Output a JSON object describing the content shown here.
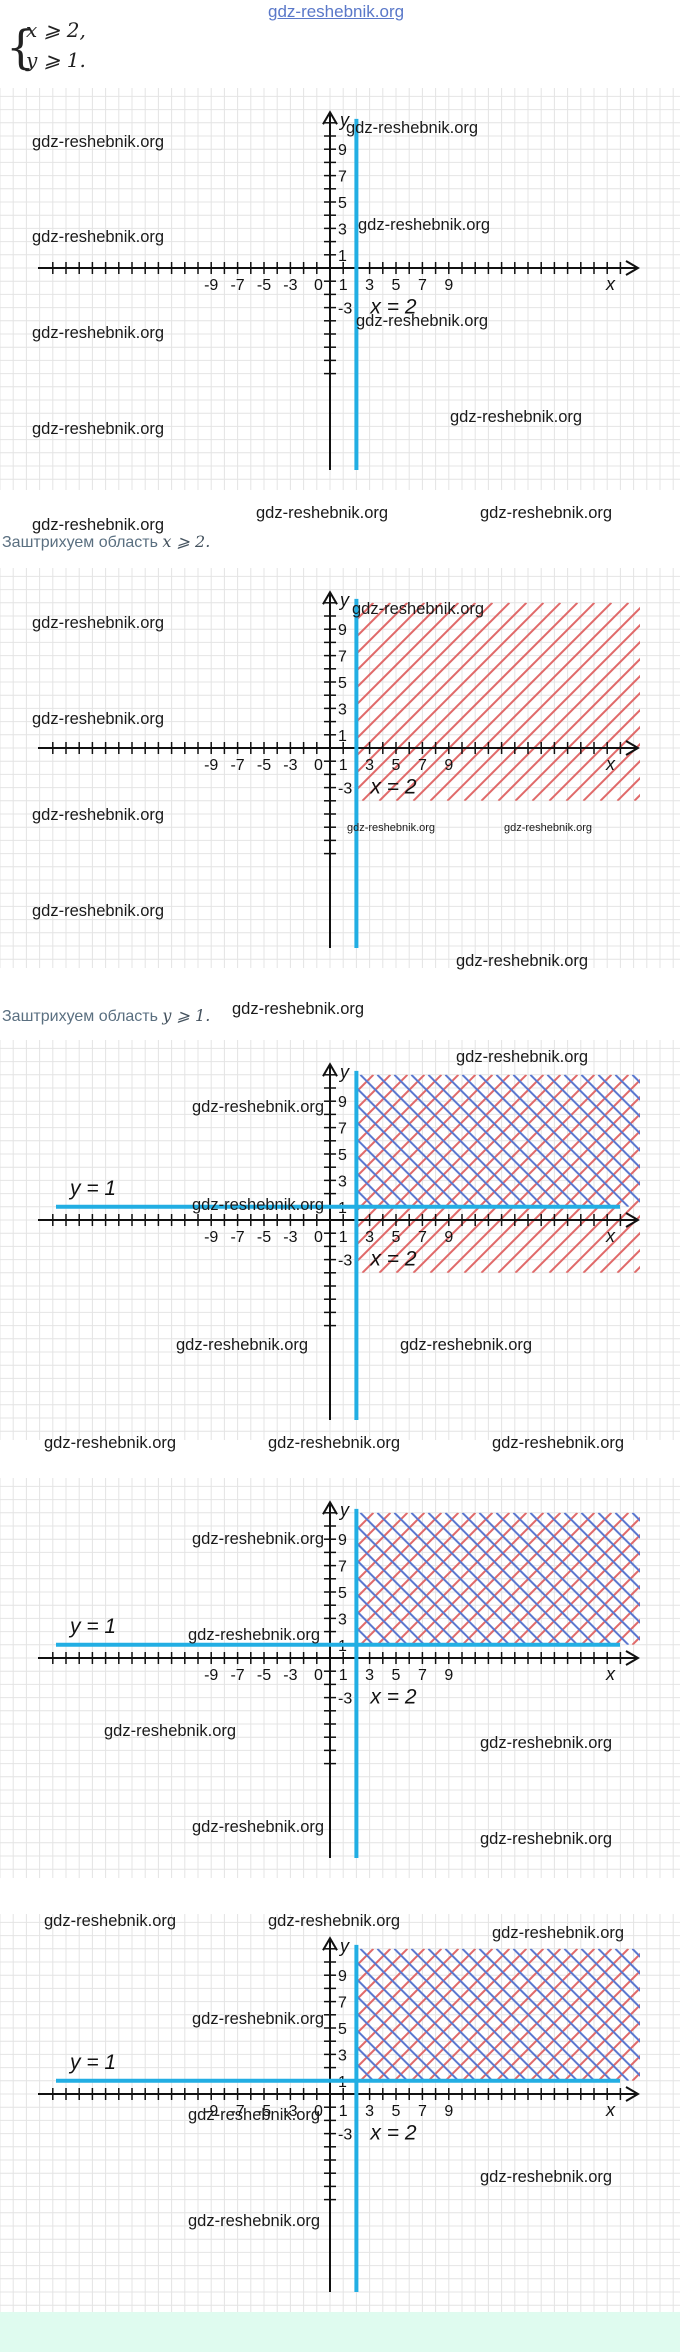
{
  "header": {
    "site": "gdz-reshebnik.org",
    "system": [
      "x ⩾ 2,",
      "y ⩾ 1."
    ]
  },
  "watermark": "gdz-reshebnik.org",
  "captions": {
    "shade_x_prefix": "Заштрихуем область",
    "shade_x_math": "x ⩾ 2.",
    "shade_y_prefix": "Заштрихуем область",
    "shade_y_math": "y ⩾ 1."
  },
  "axes": {
    "x_label": "x",
    "y_label": "y",
    "origin_label": "0",
    "x_tick_labels": [
      "-9",
      "-7",
      "-5",
      "-3",
      "1",
      "3",
      "5",
      "7",
      "9"
    ],
    "y_tick_labels": [
      "9",
      "7",
      "5",
      "3",
      "1",
      "-3"
    ]
  },
  "lines": {
    "vertical": {
      "label": "x = 2",
      "x": 2,
      "color": "#22aee3"
    },
    "horizontal": {
      "label": "y = 1",
      "y": 1,
      "color": "#22aee3"
    }
  },
  "colors": {
    "grid": "#e4e4e4",
    "axis": "#111111",
    "hatch_red": "#e06a6a",
    "hatch_blue": "#5b78d0",
    "bottom_band": "#dffbef"
  },
  "chart_data": [
    {
      "type": "diagram",
      "panel": 1,
      "shows": [
        "x = 2"
      ],
      "hatching": "none",
      "xlim": [
        -15,
        15
      ],
      "ylim": [
        -5,
        11
      ]
    },
    {
      "type": "diagram",
      "panel": 2,
      "shows": [
        "x = 2"
      ],
      "hatching": "x ⩾ 2",
      "xlim": [
        -15,
        15
      ],
      "ylim": [
        -5,
        11
      ]
    },
    {
      "type": "diagram",
      "panel": 3,
      "shows": [
        "x = 2",
        "y = 1"
      ],
      "hatching": "x ⩾ 2; y ⩾ 1",
      "xlim": [
        -15,
        15
      ],
      "ylim": [
        -5,
        11
      ]
    },
    {
      "type": "diagram",
      "panel": 4,
      "shows": [
        "x = 2",
        "y = 1"
      ],
      "hatching": "x ⩾ 2 and y ⩾ 1",
      "xlim": [
        -15,
        15
      ],
      "ylim": [
        -5,
        11
      ]
    },
    {
      "type": "diagram",
      "panel": 5,
      "shows": [
        "x = 2",
        "y = 1"
      ],
      "hatching": "x ⩾ 2 and y ⩾ 1",
      "xlim": [
        -15,
        15
      ],
      "ylim": [
        -5,
        11
      ]
    }
  ]
}
